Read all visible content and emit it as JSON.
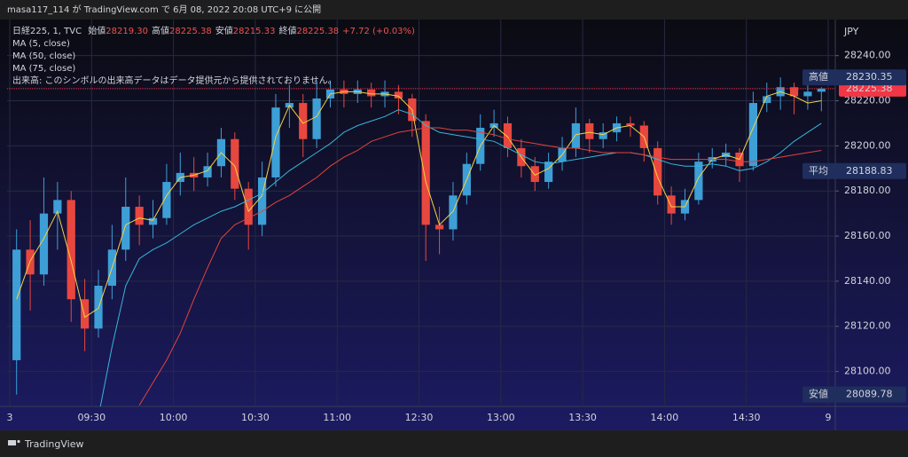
{
  "header": "masa117_114 が TradingView.com で 6月 08, 2022 20:08 UTC+9 に公開",
  "footer": "TradingView",
  "symbol_info": {
    "symbol": "日経225, 1, TVC",
    "ohlc": [
      {
        "label": "始値",
        "value": "28219.30"
      },
      {
        "label": "高値",
        "value": "28225.38"
      },
      {
        "label": "安値",
        "value": "28215.33"
      },
      {
        "label": "終値",
        "value": "28225.38"
      }
    ],
    "change": "+7.72 (+0.03%)",
    "volume_note": "出来高: このシンボルの出来高データはデータ提供元から提供されておりません。"
  },
  "chart_data": {
    "type": "candlestick",
    "x": [
      "09:00",
      "09:05",
      "09:10",
      "09:15",
      "09:20",
      "09:25",
      "09:30",
      "09:35",
      "09:40",
      "09:45",
      "09:50",
      "09:55",
      "10:00",
      "10:05",
      "10:10",
      "10:15",
      "10:20",
      "10:25",
      "10:30",
      "10:35",
      "10:40",
      "10:45",
      "10:50",
      "10:55",
      "11:00",
      "11:05",
      "11:10",
      "11:15",
      "11:20",
      "11:25",
      "12:30",
      "12:35",
      "12:40",
      "12:45",
      "12:50",
      "12:55",
      "13:00",
      "13:05",
      "13:10",
      "13:15",
      "13:20",
      "13:25",
      "13:30",
      "13:35",
      "13:40",
      "13:45",
      "13:50",
      "13:55",
      "14:00",
      "14:05",
      "14:10",
      "14:15",
      "14:20",
      "14:25",
      "14:30",
      "14:35",
      "14:40",
      "14:45",
      "14:50",
      "14:55"
    ],
    "open": [
      28105,
      28154,
      28143,
      28170,
      28176,
      28132,
      28119,
      28138,
      28154,
      28173,
      28165,
      28168,
      28184,
      28188,
      28186,
      28191,
      28203,
      28181,
      28165,
      28186,
      28217,
      28219,
      28203,
      28221,
      28225,
      28223,
      28225,
      28222,
      28224,
      28221,
      28211,
      28165,
      28163,
      28178,
      28192,
      28208,
      28210,
      28199,
      28191,
      28184,
      28193,
      28199,
      28210,
      28203,
      28206,
      28210,
      28209,
      28199,
      28178,
      28170,
      28176,
      28193,
      28195,
      28197,
      28191,
      28219,
      28222,
      28226,
      28222,
      28224
    ],
    "high": [
      28163,
      28167,
      28186,
      28184,
      28180,
      28141,
      28145,
      28165,
      28186,
      28178,
      28176,
      28192,
      28197,
      28195,
      28197,
      28208,
      28206,
      28184,
      28193,
      28223,
      28227,
      28223,
      28229,
      28229,
      28229,
      28229,
      28228,
      28229,
      28227,
      28223,
      28214,
      28173,
      28184,
      28197,
      28214,
      28216,
      28213,
      28203,
      28195,
      28197,
      28204,
      28217,
      28212,
      28210,
      28213,
      28213,
      28211,
      28202,
      28182,
      28181,
      28197,
      28199,
      28201,
      28199,
      28224,
      28228,
      28230.35,
      28228,
      28228,
      28226
    ],
    "low": [
      28089.78,
      28127,
      28138,
      28154,
      28122,
      28109,
      28115,
      28132,
      28149,
      28156,
      28159,
      28165,
      28178,
      28180,
      28182,
      28186,
      28176,
      28154,
      28160,
      28182,
      28208,
      28195,
      28199,
      28217,
      28217,
      28219,
      28217,
      28217,
      28214,
      28204,
      28149,
      28152,
      28158,
      28174,
      28189,
      28204,
      28195,
      28186,
      28180,
      28181,
      28189,
      28195,
      28197,
      28199,
      28202,
      28204,
      28193,
      28174,
      28165,
      28167,
      28174,
      28190,
      28191,
      28184,
      28189,
      28215,
      28216,
      28214,
      28216,
      28215.33
    ],
    "close": [
      28154,
      28143,
      28170,
      28176,
      28132,
      28119,
      28138,
      28154,
      28173,
      28165,
      28168,
      28184,
      28188,
      28186,
      28191,
      28203,
      28181,
      28165,
      28186,
      28217,
      28219,
      28203,
      28221,
      28225,
      28223,
      28225,
      28222,
      28224,
      28221,
      28211,
      28165,
      28163,
      28178,
      28192,
      28208,
      28210,
      28199,
      28191,
      28184,
      28193,
      28199,
      28210,
      28203,
      28206,
      28210,
      28209,
      28199,
      28178,
      28170,
      28176,
      28193,
      28195,
      28197,
      28191,
      28219,
      28222,
      28226,
      28222,
      28224,
      28225.38
    ],
    "up_color": "#3d9fd6",
    "down_color": "#e8473f",
    "series": [
      {
        "name": "MA (5, close)",
        "color": "#f5d142",
        "values": [
          28132,
          28149,
          28159,
          28171,
          28149,
          28124,
          28128,
          28146,
          28165,
          28168,
          28167,
          28178,
          28186,
          28187,
          28189,
          28197,
          28191,
          28171,
          28178,
          28204,
          28218,
          28210,
          28213,
          28223,
          28224,
          28224,
          28223,
          28223,
          28222,
          28216,
          28184,
          28165,
          28171,
          28185,
          28200,
          28209,
          28204,
          28195,
          28187,
          28190,
          28196,
          28205,
          28206,
          28205,
          28208,
          28209,
          28204,
          28186,
          28173,
          28173,
          28186,
          28194,
          28196,
          28194,
          28208,
          28222,
          28224,
          28222,
          28219,
          28220
        ]
      },
      {
        "name": "MA (50, close)",
        "color": "#35b7d8",
        "values": [
          null,
          null,
          null,
          null,
          null,
          null,
          28080,
          28111,
          28138,
          28150,
          28154,
          28157,
          28161,
          28165,
          28168,
          28171,
          28173,
          28176,
          28179,
          28184,
          28189,
          28193,
          28197,
          28201,
          28206,
          28209,
          28211,
          28213,
          28216,
          28214,
          28209,
          28206,
          28205,
          28204,
          28203,
          28202,
          28199,
          28196,
          28193,
          28192,
          28193,
          28194,
          28195,
          28196,
          28197,
          28197,
          28196,
          28194,
          28192,
          28191,
          28191,
          28192,
          28191,
          28189,
          28190,
          28193,
          28197,
          28202,
          28206,
          28210
        ]
      },
      {
        "name": "MA (75, close)",
        "color": "#e0443a",
        "values": [
          null,
          null,
          null,
          null,
          null,
          null,
          null,
          null,
          null,
          28085,
          28095,
          28105,
          28117,
          28132,
          28146,
          28159,
          28165,
          28168,
          28171,
          28175,
          28178,
          28182,
          28186,
          28191,
          28195,
          28198,
          28202,
          28204,
          28206,
          28207,
          28208,
          28208,
          28207,
          28207,
          28206,
          28205,
          28203,
          28202,
          28201,
          28200,
          28199,
          28199,
          28198,
          28197,
          28197,
          28197,
          28196,
          28195,
          28194,
          28194,
          28194,
          28194,
          28194,
          28193,
          28193,
          28194,
          28195,
          28196,
          28197,
          28198
        ]
      }
    ],
    "ylim": [
      28084.5,
      28256
    ],
    "yticks": [
      {
        "value": 28240,
        "label": "28240.00"
      },
      {
        "value": 28220,
        "label": "28220.00"
      },
      {
        "value": 28200,
        "label": "28200.00"
      },
      {
        "value": 28180,
        "label": "28180.00"
      },
      {
        "value": 28160,
        "label": "28160.00"
      },
      {
        "value": 28140,
        "label": "28140.00"
      },
      {
        "value": 28120,
        "label": "28120.00"
      },
      {
        "value": 28100,
        "label": "28100.00"
      }
    ],
    "xticks": [
      {
        "value": "09:00",
        "label": "3"
      },
      "09:30",
      "10:00",
      "10:30",
      "11:00",
      "12:30",
      "13:00",
      "13:30",
      "14:00",
      "14:30",
      {
        "value": "15:00",
        "label": "9"
      }
    ],
    "grid": true,
    "y_unit": "JPY",
    "last_price": 28225.38,
    "last_price_color": "#f23645",
    "price_labels": [
      {
        "label": "高値",
        "value": 28230.35
      },
      {
        "label": "平均",
        "value": 28188.83
      },
      {
        "label": "安値",
        "value": 28089.78
      }
    ]
  }
}
